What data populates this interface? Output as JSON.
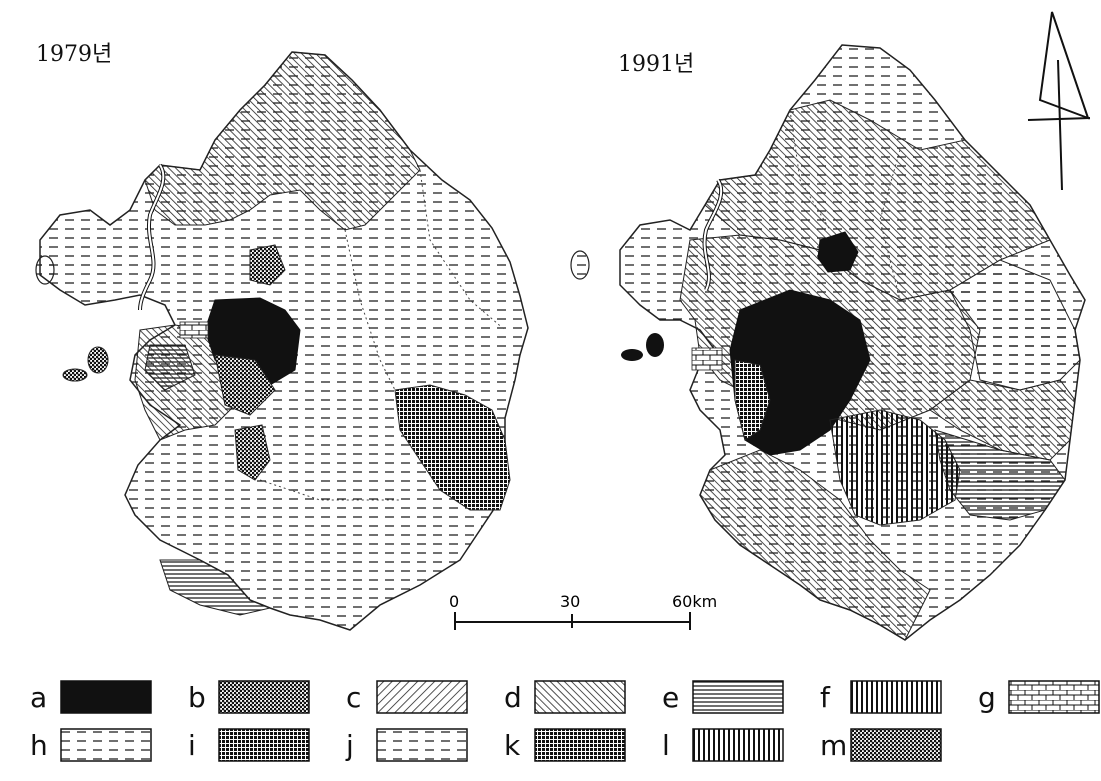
{
  "maps": [
    {
      "title": "1979년"
    },
    {
      "title": "1991년"
    }
  ],
  "north_arrow": {
    "icon": "north-arrow-icon"
  },
  "scale_bar": {
    "ticks": [
      "0",
      "30",
      "60km"
    ]
  },
  "legend": {
    "items": [
      {
        "key": "a",
        "pattern": "solid-black"
      },
      {
        "key": "b",
        "pattern": "dense-dots"
      },
      {
        "key": "c",
        "pattern": "forward-diagonal"
      },
      {
        "key": "d",
        "pattern": "backward-diagonal"
      },
      {
        "key": "e",
        "pattern": "horizontal-lines"
      },
      {
        "key": "f",
        "pattern": "vertical-lines"
      },
      {
        "key": "g",
        "pattern": "brick"
      },
      {
        "key": "h",
        "pattern": "dashes"
      },
      {
        "key": "i",
        "pattern": "dense-black-dots"
      },
      {
        "key": "j",
        "pattern": "horizontal-dashes-dense"
      },
      {
        "key": "k",
        "pattern": "crosshatch-grid"
      },
      {
        "key": "l",
        "pattern": "thick-vertical-lines"
      },
      {
        "key": "m",
        "pattern": "sparse-dots"
      }
    ]
  }
}
